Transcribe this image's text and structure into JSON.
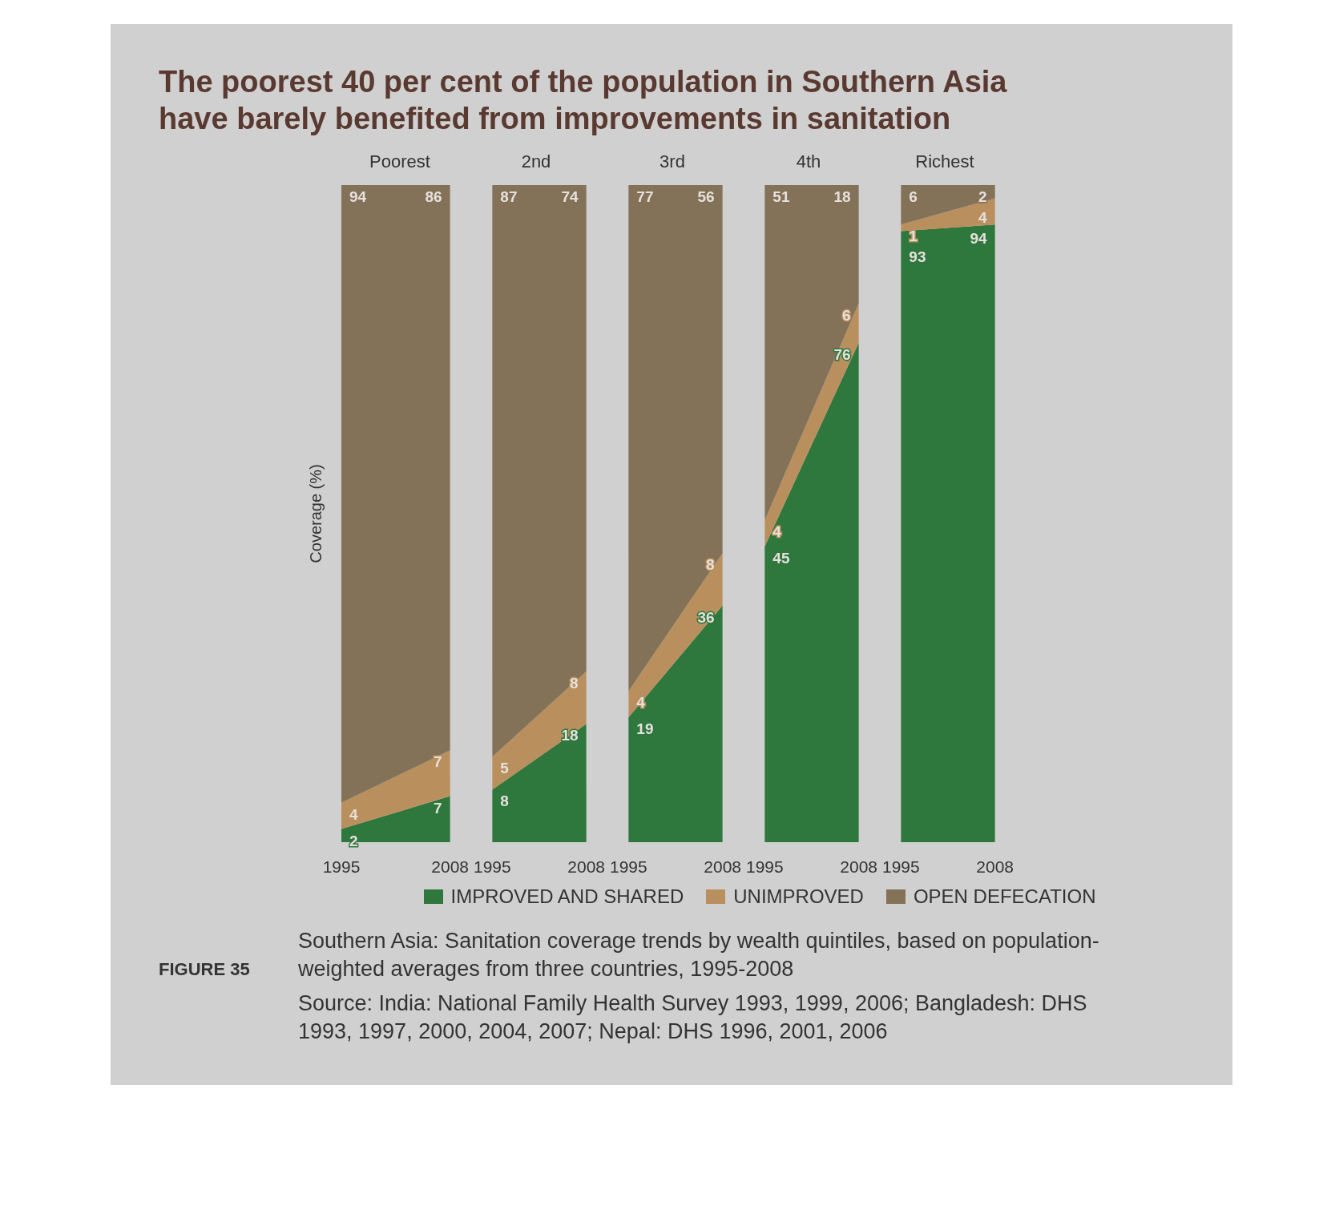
{
  "chart_data": [
    {
      "type": "area",
      "title": "The poorest 40 per cent of the population in Southern Asia have barely benefited from improvements in sanitation",
      "subtitle": "Poorest",
      "ylabel": "Coverage (%)",
      "categories": [
        "1995",
        "2008"
      ],
      "stacked": true,
      "data_labels": true,
      "legend": "bottom",
      "series": [
        {
          "name": "IMPROVED AND SHARED",
          "color": "#2e773d",
          "values": [
            2,
            7
          ]
        },
        {
          "name": "UNIMPROVED",
          "color": "#b98f5e",
          "values": [
            4,
            7
          ]
        },
        {
          "name": "OPEN DEFECATION",
          "color": "#837258",
          "values": [
            94,
            86
          ]
        }
      ]
    },
    {
      "type": "area",
      "subtitle": "2nd",
      "categories": [
        "1995",
        "2008"
      ],
      "stacked": true,
      "data_labels": true,
      "series": [
        {
          "color": "#2e773d",
          "values": [
            8,
            18
          ]
        },
        {
          "color": "#b98f5e",
          "values": [
            5,
            8
          ]
        },
        {
          "color": "#837258",
          "values": [
            87,
            74
          ]
        }
      ]
    },
    {
      "type": "area",
      "subtitle": "3rd",
      "categories": [
        "1995",
        "2008"
      ],
      "stacked": true,
      "data_labels": true,
      "series": [
        {
          "color": "#2e773d",
          "values": [
            19,
            36
          ]
        },
        {
          "color": "#b98f5e",
          "values": [
            4,
            8
          ]
        },
        {
          "color": "#837258",
          "values": [
            77,
            56
          ]
        }
      ]
    },
    {
      "type": "area",
      "subtitle": "4th",
      "categories": [
        "1995",
        "2008"
      ],
      "stacked": true,
      "data_labels": true,
      "series": [
        {
          "color": "#2e773d",
          "values": [
            45,
            76
          ]
        },
        {
          "color": "#b98f5e",
          "values": [
            4,
            6
          ]
        },
        {
          "color": "#837258",
          "values": [
            51,
            18
          ]
        }
      ]
    },
    {
      "type": "area",
      "subtitle": "Richest",
      "categories": [
        "1995",
        "2008"
      ],
      "stacked": true,
      "data_labels": true,
      "annotations": [
        "FIGURE 35",
        "Southern Asia: Sanitation coverage trends by wealth quintiles, based on population-weighted averages from three countries, 1995-2008",
        "Source: India: National Family Health Survey 1993, 1999, 2006; Bangladesh: DHS 1993, 1997, 2000, 2004, 2007; Nepal: DHS 1996, 2001, 2006"
      ],
      "series": [
        {
          "color": "#2e773d",
          "values": [
            93,
            94
          ]
        },
        {
          "color": "#b98f5e",
          "values": [
            1,
            4
          ]
        },
        {
          "color": "#837258",
          "values": [
            6,
            2
          ]
        }
      ]
    }
  ]
}
